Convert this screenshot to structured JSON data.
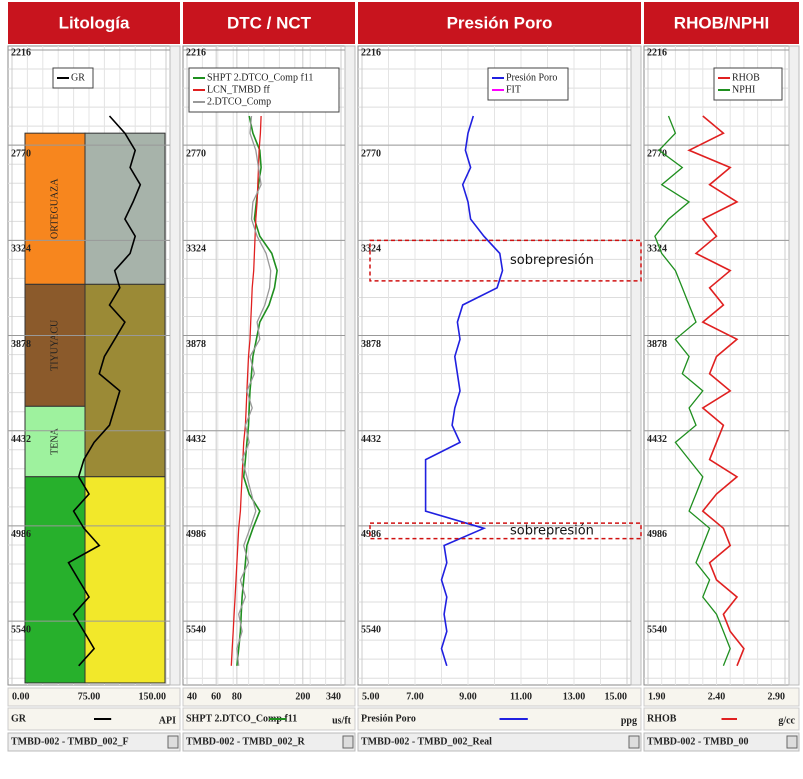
{
  "chart_data": {
    "type": "well-log",
    "ylim": [
      2216,
      5912
    ],
    "depth_ticks": [
      2216,
      2770,
      3324,
      3878,
      4432,
      4986,
      5540
    ],
    "depth": [
      2600,
      2700,
      2800,
      2900,
      3000,
      3100,
      3200,
      3300,
      3400,
      3500,
      3600,
      3700,
      3800,
      3900,
      4000,
      4100,
      4200,
      4300,
      4400,
      4500,
      4600,
      4700,
      4800,
      4900,
      5000,
      5100,
      5200,
      5300,
      5400,
      5500,
      5600,
      5700,
      5800
    ],
    "tracks": [
      {
        "title": "Litología",
        "xlim": [
          0,
          150
        ],
        "xticks": [
          {
            "value": 0,
            "label": "0.00"
          },
          {
            "value": 75,
            "label": "75.00"
          },
          {
            "value": 150,
            "label": "150.00"
          }
        ],
        "curve": "GR",
        "unit": "API",
        "footer": "TMBD-002 - TMBD_002_F",
        "legend": [
          {
            "name": "GR",
            "color": "#000000"
          }
        ],
        "series": [
          {
            "values": [
              95,
              110,
              120,
              115,
              125,
              118,
              110,
              120,
              115,
              100,
              105,
              95,
              110,
              100,
              90,
              85,
              105,
              100,
              95,
              80,
              70,
              65,
              75,
              60,
              70,
              85,
              55,
              65,
              75,
              60,
              70,
              80,
              65
            ]
          }
        ],
        "zones": [
          {
            "top": 2700,
            "base": 3580,
            "color": "#f7861e",
            "label": "ORTEGUAZA"
          },
          {
            "top": 3580,
            "base": 4290,
            "color": "#8b5a2b",
            "label": "TIYUYACU"
          },
          {
            "top": 4290,
            "base": 4700,
            "color": "#9ef29e",
            "label": "TENA"
          },
          {
            "top": 4700,
            "base": 5900,
            "color": "#27b02c"
          }
        ],
        "lith": [
          {
            "top": 2700,
            "base": 3580,
            "color": "#a7b3aa"
          },
          {
            "top": 3580,
            "base": 4700,
            "color": "#9b8a36"
          },
          {
            "top": 4700,
            "base": 5900,
            "color": "#f2e82a"
          }
        ]
      },
      {
        "title": "DTC / NCT",
        "xlim": [
          40,
          340
        ],
        "log": true,
        "xticks": [
          40,
          60,
          80,
          200,
          340
        ],
        "curve": "SHPT 2.DTCO_Comp f11",
        "unit": "us/ft",
        "footer": "TMBD-002 - TMBD_002_R",
        "legend": [
          {
            "name": "SHPT 2.DTCO_Comp f11",
            "color": "#1f8f1f"
          },
          {
            "name": "LCN_TMBD ff",
            "color": "#e02020"
          },
          {
            "name": "2.DTCO_Comp",
            "color": "#999999"
          }
        ],
        "series": [
          {
            "values": [
              95,
              100,
              110,
              112,
              108,
              105,
              102,
              110,
              130,
              140,
              135,
              125,
              110,
              105,
              100,
              98,
              96,
              95,
              94,
              92,
              90,
              88,
              95,
              110,
              100,
              92,
              90,
              88,
              86,
              85,
              84,
              82,
              80
            ]
          },
          {
            "values": [
              112,
              111,
              109,
              108,
              107,
              106,
              104,
              103,
              102,
              101,
              99,
              98,
              97,
              96,
              94,
              93,
              92,
              91,
              90,
              88,
              87,
              86,
              85,
              84,
              82,
              81,
              80,
              79,
              78,
              77,
              76,
              75,
              74
            ]
          },
          {
            "values": [
              98,
              96,
              104,
              108,
              112,
              100,
              98,
              106,
              120,
              128,
              126,
              118,
              106,
              110,
              96,
              102,
              92,
              99,
              90,
              95,
              86,
              92,
              98,
              104,
              96,
              88,
              94,
              84,
              90,
              82,
              86,
              80,
              82
            ]
          }
        ]
      },
      {
        "title": "Presión Poro",
        "xlim": [
          5,
          15
        ],
        "xticks": [
          {
            "value": 5,
            "label": "5.00"
          },
          {
            "value": 7,
            "label": "7.00"
          },
          {
            "value": 9,
            "label": "9.00"
          },
          {
            "value": 11,
            "label": "11.00"
          },
          {
            "value": 13,
            "label": "13.00"
          },
          {
            "value": 15,
            "label": "15.00"
          }
        ],
        "curve": "Presión Poro",
        "unit": "ppg",
        "footer": "TMBD-002 - TMBD_002_Real",
        "legend": [
          {
            "name": "Presión Poro",
            "color": "#2020e0"
          },
          {
            "name": "FIT",
            "color": "#ff00ff"
          }
        ],
        "series": [
          {
            "values": [
              9.2,
              9.0,
              8.9,
              9.1,
              8.8,
              9.0,
              9.1,
              9.6,
              10.2,
              10.3,
              10.1,
              8.8,
              8.6,
              8.7,
              8.5,
              8.6,
              8.7,
              8.5,
              8.4,
              8.7,
              7.4,
              7.4,
              7.4,
              7.4,
              9.6,
              8.1,
              8.2,
              8.0,
              8.2,
              8.1,
              8.2,
              8.0,
              8.2
            ]
          }
        ],
        "annotations": [
          {
            "text": "sobrepresión",
            "top": 3324,
            "base": 3560
          },
          {
            "text": "sobrepresión",
            "top": 4970,
            "base": 5060
          }
        ]
      },
      {
        "title": "RHOB/NPHI",
        "xlim": [
          1.9,
          2.9
        ],
        "xticks": [
          {
            "value": 1.9,
            "label": "1.90"
          },
          {
            "value": 2.4,
            "label": "2.40"
          },
          {
            "value": 2.9,
            "label": "2.90"
          }
        ],
        "curve": "RHOB",
        "unit": "g/cc",
        "footer": "TMBD-002 - TMBD_00",
        "legend": [
          {
            "name": "RHOB",
            "color": "#e02020"
          },
          {
            "name": "NPHI",
            "color": "#1f8f1f"
          }
        ],
        "series": [
          {
            "values": [
              2.3,
              2.45,
              2.2,
              2.5,
              2.35,
              2.55,
              2.3,
              2.4,
              2.25,
              2.5,
              2.35,
              2.45,
              2.3,
              2.55,
              2.4,
              2.35,
              2.5,
              2.3,
              2.45,
              2.4,
              2.35,
              2.55,
              2.4,
              2.3,
              2.45,
              2.5,
              2.35,
              2.4,
              2.55,
              2.45,
              2.5,
              2.6,
              2.55
            ]
          },
          {
            "values": [
              2.05,
              2.1,
              1.98,
              2.15,
              2.0,
              2.2,
              2.05,
              1.95,
              2.0,
              2.1,
              2.15,
              2.2,
              2.25,
              2.1,
              2.2,
              2.15,
              2.3,
              2.2,
              2.25,
              2.1,
              2.2,
              2.3,
              2.25,
              2.2,
              2.35,
              2.3,
              2.25,
              2.35,
              2.3,
              2.4,
              2.45,
              2.5,
              2.45
            ]
          }
        ]
      }
    ]
  }
}
